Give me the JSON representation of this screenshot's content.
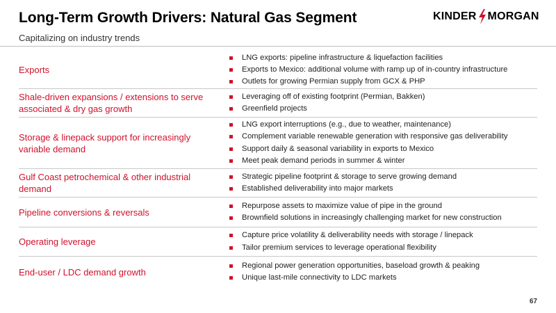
{
  "header": {
    "title": "Long-Term Growth Drivers: Natural Gas Segment",
    "subtitle": "Capitalizing on industry trends",
    "logo_text_left": "KINDER",
    "logo_text_right": "MORGAN",
    "logo_icon": "lightning-bolt-icon"
  },
  "colors": {
    "accent": "#d0112b",
    "text": "#222222",
    "rule": "#c7c7c7"
  },
  "rows": [
    {
      "driver": "Exports",
      "points": [
        "LNG exports:  pipeline infrastructure & liquefaction facilities",
        "Exports to Mexico:  additional volume with ramp up of in-country infrastructure",
        "Outlets for growing Permian supply from GCX & PHP"
      ]
    },
    {
      "driver": "Shale-driven expansions / extensions to serve associated & dry gas growth",
      "points": [
        "Leveraging off of existing footprint (Permian, Bakken)",
        "Greenfield projects"
      ]
    },
    {
      "driver": "Storage & linepack support for increasingly variable demand",
      "points": [
        "LNG export interruptions (e.g., due to weather, maintenance)",
        "Complement variable renewable generation with responsive gas deliverability",
        "Support daily & seasonal variability in exports to Mexico",
        "Meet peak demand periods in summer & winter"
      ]
    },
    {
      "driver": "Gulf Coast petrochemical & other industrial demand",
      "points": [
        "Strategic pipeline footprint & storage to serve growing demand",
        "Established deliverability into major markets"
      ]
    },
    {
      "driver": "Pipeline conversions & reversals",
      "points": [
        "Repurpose assets to maximize value of pipe in the ground",
        "Brownfield solutions in increasingly challenging market for new construction"
      ]
    },
    {
      "driver": "Operating leverage",
      "points": [
        "Capture price volatility & deliverability needs with storage / linepack",
        "Tailor premium services to leverage operational flexibility"
      ]
    },
    {
      "driver": "End-user / LDC demand growth",
      "points": [
        "Regional power generation opportunities, baseload growth & peaking",
        "Unique last-mile connectivity to LDC markets"
      ]
    }
  ],
  "footer": {
    "page_number": "67"
  }
}
